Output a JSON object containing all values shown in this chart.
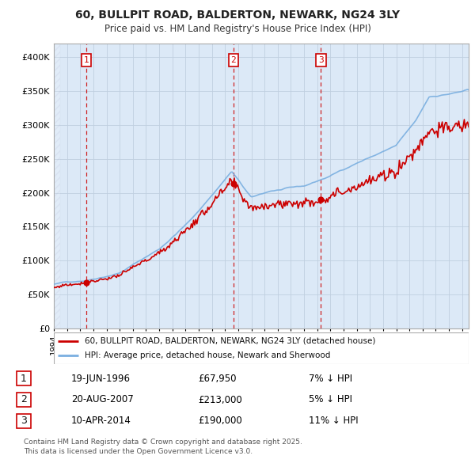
{
  "title": "60, BULLPIT ROAD, BALDERTON, NEWARK, NG24 3LY",
  "subtitle": "Price paid vs. HM Land Registry's House Price Index (HPI)",
  "ylim": [
    0,
    420000
  ],
  "yticks": [
    0,
    50000,
    100000,
    150000,
    200000,
    250000,
    300000,
    350000,
    400000
  ],
  "ytick_labels": [
    "£0",
    "£50K",
    "£100K",
    "£150K",
    "£200K",
    "£250K",
    "£300K",
    "£350K",
    "£400K"
  ],
  "xlim_start": 1994.0,
  "xlim_end": 2025.5,
  "hpi_color": "#7aafe0",
  "price_color": "#cc0000",
  "vline_color": "#cc0000",
  "grid_color": "#c0cfe0",
  "bg_color": "#dce9f7",
  "sale1_date": 1996.47,
  "sale1_price": 67950,
  "sale1_label": "1",
  "sale2_date": 2007.64,
  "sale2_price": 213000,
  "sale2_label": "2",
  "sale3_date": 2014.28,
  "sale3_price": 190000,
  "sale3_label": "3",
  "legend_line1": "60, BULLPIT ROAD, BALDERTON, NEWARK, NG24 3LY (detached house)",
  "legend_line2": "HPI: Average price, detached house, Newark and Sherwood",
  "table_rows": [
    {
      "num": "1",
      "date": "19-JUN-1996",
      "price": "£67,950",
      "info": "7% ↓ HPI"
    },
    {
      "num": "2",
      "date": "20-AUG-2007",
      "price": "£213,000",
      "info": "5% ↓ HPI"
    },
    {
      "num": "3",
      "date": "10-APR-2014",
      "price": "£190,000",
      "info": "11% ↓ HPI"
    }
  ],
  "footer": "Contains HM Land Registry data © Crown copyright and database right 2025.\nThis data is licensed under the Open Government Licence v3.0."
}
